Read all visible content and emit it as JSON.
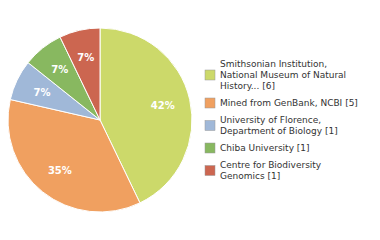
{
  "chart_data": {
    "type": "pie",
    "categories": [
      "Smithsonian Institution,\nNational Museum of Natural\nHistory... [6]",
      "Mined from GenBank, NCBI [5]",
      "University of Florence,\nDepartment of Biology [1]",
      "Chiba University [1]",
      "Centre for Biodiversity\nGenomics [1]"
    ],
    "values": [
      42,
      35,
      7,
      7,
      7
    ],
    "value_labels": [
      "42%",
      "35%",
      "7%",
      "7%",
      "7%"
    ],
    "colors": [
      "#ccd96a",
      "#f0a060",
      "#a0b8d8",
      "#88b860",
      "#cc6650"
    ],
    "data_labels": true,
    "legend": "right"
  }
}
